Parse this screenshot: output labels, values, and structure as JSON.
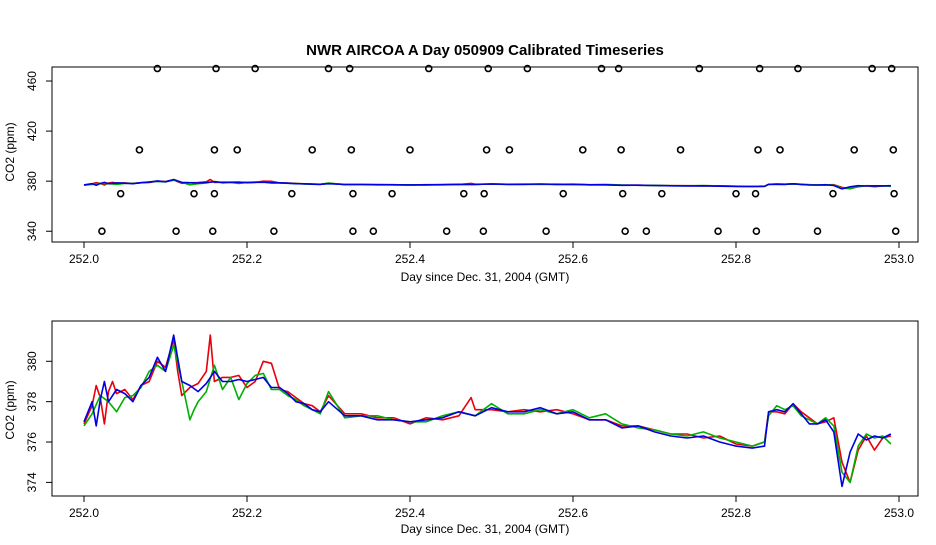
{
  "chart_data": [
    {
      "type": "scatter+line",
      "title": "NWR AIRCOA A  Day 050909  Calibrated Timeseries",
      "xlabel": "Day since Dec. 31, 2004 (GMT)",
      "ylabel": "CO2 (ppm)",
      "xlim": [
        252.0,
        253.0
      ],
      "ylim": [
        333,
        472
      ],
      "x_ticks": [
        "252.0",
        "252.2",
        "252.4",
        "252.6",
        "252.8",
        "253.0"
      ],
      "y_ticks": [
        "340",
        "380",
        "420",
        "460"
      ],
      "calibration_points": {
        "level_340": [
          252.022,
          252.113,
          252.158,
          252.233,
          252.33,
          252.355,
          252.445,
          252.49,
          252.567,
          252.664,
          252.69,
          252.778,
          252.825,
          252.9,
          252.996
        ],
        "level_370": [
          252.045,
          252.135,
          252.16,
          252.255,
          252.33,
          252.378,
          252.466,
          252.491,
          252.588,
          252.661,
          252.709,
          252.8,
          252.824,
          252.919,
          252.994
        ],
        "level_405": [
          252.068,
          252.16,
          252.188,
          252.28,
          252.328,
          252.4,
          252.494,
          252.522,
          252.612,
          252.659,
          252.732,
          252.827,
          252.854,
          252.945,
          252.993
        ],
        "level_470": [
          252.09,
          252.162,
          252.21,
          252.3,
          252.326,
          252.423,
          252.496,
          252.544,
          252.635,
          252.656,
          252.755,
          252.829,
          252.876,
          252.967,
          252.991
        ]
      },
      "series_colors": [
        "#e8000b",
        "#00b000",
        "#0000e0"
      ]
    },
    {
      "type": "line",
      "xlabel": "Day since Dec. 31, 2004 (GMT)",
      "ylabel": "CO2 (ppm)",
      "xlim": [
        252.0,
        253.0
      ],
      "ylim": [
        373.4,
        381.6
      ],
      "x_ticks": [
        "252.0",
        "252.2",
        "252.4",
        "252.6",
        "252.8",
        "253.0"
      ],
      "y_ticks": [
        "374",
        "376",
        "378",
        "380"
      ],
      "series": [
        {
          "name": "red",
          "color": "#e8000b",
          "x": [
            252.0,
            252.01,
            252.015,
            252.02,
            252.025,
            252.03,
            252.035,
            252.04,
            252.05,
            252.06,
            252.07,
            252.08,
            252.09,
            252.1,
            252.11,
            252.115,
            252.12,
            252.13,
            252.14,
            252.15,
            252.155,
            252.16,
            252.17,
            252.18,
            252.19,
            252.2,
            252.21,
            252.22,
            252.23,
            252.24,
            252.25,
            252.26,
            252.27,
            252.28,
            252.29,
            252.3,
            252.32,
            252.34,
            252.36,
            252.38,
            252.4,
            252.42,
            252.44,
            252.46,
            252.475,
            252.48,
            252.5,
            252.52,
            252.54,
            252.56,
            252.58,
            252.6,
            252.62,
            252.64,
            252.66,
            252.68,
            252.7,
            252.72,
            252.74,
            252.76,
            252.78,
            252.8,
            252.82,
            252.835,
            252.84,
            252.85,
            252.86,
            252.87,
            252.88,
            252.89,
            252.9,
            252.91,
            252.92,
            252.93,
            252.94,
            252.95,
            252.96,
            252.97,
            252.98,
            252.99
          ],
          "values": [
            376.9,
            377.8,
            378.8,
            378.2,
            376.9,
            378.5,
            379.0,
            378.4,
            378.6,
            378.1,
            378.8,
            379.0,
            380.0,
            379.7,
            381.1,
            379.5,
            378.3,
            378.7,
            378.9,
            379.5,
            381.3,
            379.0,
            379.2,
            379.2,
            379.3,
            378.7,
            379.0,
            380.0,
            379.9,
            378.6,
            378.5,
            378.2,
            377.9,
            377.8,
            377.5,
            378.3,
            377.4,
            377.4,
            377.2,
            377.2,
            376.9,
            377.2,
            377.1,
            377.3,
            378.2,
            377.6,
            377.6,
            377.5,
            377.6,
            377.5,
            377.6,
            377.4,
            377.1,
            377.1,
            376.8,
            376.8,
            376.6,
            376.4,
            376.4,
            376.2,
            376.3,
            375.9,
            375.8,
            376.0,
            377.5,
            377.5,
            377.4,
            377.9,
            377.5,
            377.2,
            376.9,
            377.0,
            377.2,
            375.0,
            374.0,
            375.6,
            376.3,
            375.6,
            376.2,
            376.3
          ]
        },
        {
          "name": "green",
          "color": "#00b000",
          "x": [
            252.0,
            252.01,
            252.02,
            252.03,
            252.04,
            252.05,
            252.06,
            252.07,
            252.08,
            252.09,
            252.1,
            252.11,
            252.12,
            252.13,
            252.135,
            252.14,
            252.15,
            252.16,
            252.17,
            252.18,
            252.19,
            252.2,
            252.21,
            252.22,
            252.23,
            252.24,
            252.25,
            252.26,
            252.27,
            252.28,
            252.29,
            252.3,
            252.32,
            252.34,
            252.36,
            252.38,
            252.4,
            252.42,
            252.44,
            252.46,
            252.48,
            252.5,
            252.52,
            252.54,
            252.56,
            252.58,
            252.6,
            252.62,
            252.64,
            252.66,
            252.68,
            252.7,
            252.72,
            252.74,
            252.76,
            252.78,
            252.8,
            252.82,
            252.835,
            252.84,
            252.85,
            252.86,
            252.87,
            252.88,
            252.89,
            252.9,
            252.91,
            252.92,
            252.93,
            252.94,
            252.95,
            252.96,
            252.97,
            252.98,
            252.99
          ],
          "values": [
            376.8,
            377.4,
            378.3,
            378.0,
            377.5,
            378.2,
            378.3,
            378.7,
            379.5,
            379.8,
            379.5,
            380.8,
            379.0,
            377.1,
            377.6,
            378.0,
            378.5,
            379.8,
            378.6,
            379.2,
            378.1,
            378.9,
            379.3,
            379.4,
            378.6,
            378.6,
            378.3,
            378.1,
            377.8,
            377.6,
            377.4,
            378.5,
            377.2,
            377.3,
            377.3,
            377.1,
            377.0,
            377.0,
            377.3,
            377.5,
            377.3,
            377.9,
            377.4,
            377.4,
            377.6,
            377.4,
            377.6,
            377.2,
            377.4,
            376.9,
            376.7,
            376.6,
            376.4,
            376.3,
            376.5,
            376.2,
            376.0,
            375.8,
            376.0,
            377.3,
            377.8,
            377.6,
            377.8,
            377.3,
            377.1,
            376.9,
            377.2,
            376.8,
            374.5,
            374.0,
            375.8,
            376.4,
            376.2,
            376.3,
            375.9
          ]
        },
        {
          "name": "blue",
          "color": "#0000e0",
          "x": [
            252.0,
            252.01,
            252.015,
            252.02,
            252.025,
            252.03,
            252.04,
            252.05,
            252.06,
            252.07,
            252.08,
            252.09,
            252.1,
            252.11,
            252.12,
            252.13,
            252.14,
            252.15,
            252.16,
            252.17,
            252.18,
            252.19,
            252.2,
            252.21,
            252.22,
            252.23,
            252.24,
            252.25,
            252.26,
            252.27,
            252.28,
            252.29,
            252.3,
            252.32,
            252.34,
            252.36,
            252.38,
            252.4,
            252.42,
            252.44,
            252.46,
            252.48,
            252.5,
            252.52,
            252.54,
            252.56,
            252.58,
            252.6,
            252.62,
            252.64,
            252.66,
            252.68,
            252.7,
            252.72,
            252.74,
            252.76,
            252.78,
            252.8,
            252.82,
            252.835,
            252.84,
            252.85,
            252.86,
            252.87,
            252.88,
            252.89,
            252.9,
            252.91,
            252.92,
            252.93,
            252.94,
            252.95,
            252.96,
            252.97,
            252.98,
            252.99
          ],
          "values": [
            377.0,
            378.0,
            376.8,
            378.1,
            379.0,
            378.0,
            378.6,
            378.4,
            378.0,
            378.8,
            379.2,
            380.2,
            379.5,
            381.3,
            379.0,
            378.8,
            378.5,
            378.9,
            379.5,
            379.0,
            379.0,
            379.1,
            379.0,
            379.1,
            379.2,
            378.7,
            378.7,
            378.4,
            378.0,
            377.9,
            377.6,
            377.5,
            378.0,
            377.3,
            377.3,
            377.1,
            377.1,
            377.0,
            377.1,
            377.2,
            377.5,
            377.3,
            377.7,
            377.5,
            377.5,
            377.7,
            377.4,
            377.5,
            377.1,
            377.1,
            376.7,
            376.8,
            376.5,
            376.3,
            376.2,
            376.3,
            376.0,
            375.8,
            375.7,
            375.8,
            377.5,
            377.6,
            377.5,
            377.9,
            377.4,
            376.9,
            376.9,
            377.1,
            376.5,
            373.8,
            375.5,
            376.4,
            376.1,
            376.3,
            376.2,
            376.4
          ]
        }
      ]
    }
  ]
}
